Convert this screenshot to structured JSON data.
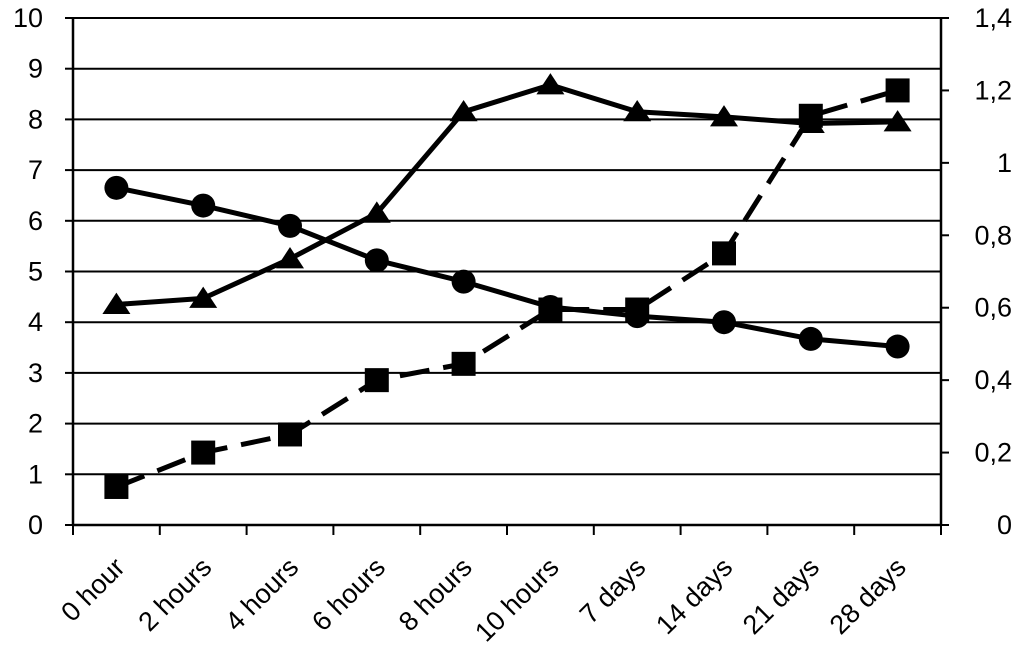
{
  "chart_data": {
    "type": "line",
    "categories": [
      "0 hour",
      "2 hours",
      "4 hours",
      "6 hours",
      "8 hours",
      "10 hours",
      "7 days",
      "14 days",
      "21 days",
      "28 days"
    ],
    "y_left": {
      "ylim": [
        0,
        10
      ],
      "ticks": [
        "0",
        "1",
        "2",
        "3",
        "4",
        "5",
        "6",
        "7",
        "8",
        "9",
        "10"
      ]
    },
    "y_right": {
      "ylim": [
        0,
        1.4
      ],
      "ticks": [
        "0",
        "0,2",
        "0,4",
        "0,6",
        "0,8",
        "1",
        "1,2",
        "1,4"
      ]
    },
    "grid": true,
    "legend": "none",
    "series": [
      {
        "marker": "circle",
        "line": "solid",
        "axis": "left",
        "values": [
          6.65,
          6.3,
          5.9,
          5.22,
          4.8,
          4.3,
          4.12,
          4.0,
          3.67,
          3.52
        ]
      },
      {
        "marker": "triangle",
        "line": "solid",
        "axis": "left",
        "values": [
          4.35,
          4.47,
          5.25,
          6.15,
          8.15,
          8.68,
          8.15,
          8.05,
          7.92,
          7.95
        ]
      },
      {
        "marker": "square",
        "line": "dashed",
        "axis": "right",
        "values": [
          0.105,
          0.2,
          0.25,
          0.4,
          0.445,
          0.595,
          0.595,
          0.75,
          1.13,
          1.2
        ]
      }
    ]
  }
}
